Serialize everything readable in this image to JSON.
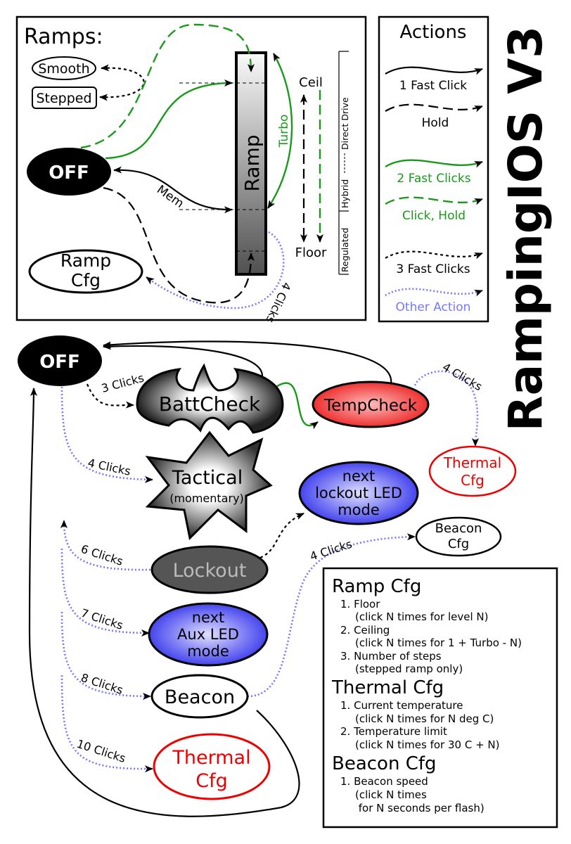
{
  "title": "RampingIOS V3",
  "ramps_panel": {
    "heading": "Ramps:",
    "smooth": "Smooth",
    "stepped": "Stepped",
    "off": "OFF",
    "ramp": "Ramp",
    "ramp_cfg": [
      "Ramp",
      "Cfg"
    ],
    "mem": "Mem",
    "turbo": "Turbo",
    "ceil": "Ceil",
    "floor": "Floor",
    "four_clicks": "4 Clicks",
    "scale": {
      "regulated": "Regulated",
      "hybrid": "Hybrid",
      "direct_drive": "Direct Drive"
    }
  },
  "actions_legend": {
    "heading": "Actions",
    "items": [
      {
        "label": "1 Fast Click",
        "color": "#000000",
        "style": "solid"
      },
      {
        "label": "Hold",
        "color": "#000000",
        "style": "dashed"
      },
      {
        "label": "2 Fast Clicks",
        "color": "#1a9a1a",
        "style": "solid"
      },
      {
        "label": "Click, Hold",
        "color": "#1a9a1a",
        "style": "dashed"
      },
      {
        "label": "3 Fast Clicks",
        "color": "#000000",
        "style": "dotted"
      },
      {
        "label": "Other Action",
        "color": "#7777ff",
        "style": "dotted"
      }
    ]
  },
  "states": {
    "off": "OFF",
    "battcheck": "BattCheck",
    "tempcheck": "TempCheck",
    "thermal_cfg_top": [
      "Thermal",
      "Cfg"
    ],
    "tactical": [
      "Tactical",
      "(momentary)"
    ],
    "lockout_led": [
      "next",
      "lockout LED",
      "mode"
    ],
    "beacon_cfg": [
      "Beacon",
      "Cfg"
    ],
    "lockout": "Lockout",
    "aux_led": [
      "next",
      "Aux LED",
      "mode"
    ],
    "beacon": "Beacon",
    "thermal_cfg": [
      "Thermal",
      "Cfg"
    ]
  },
  "transitions": {
    "off_battcheck": "3 Clicks",
    "tempcheck_thermal": "4 Clicks",
    "off_tactical": "4 Clicks",
    "off_lockout": "6 Clicks",
    "off_aux": "7 Clicks",
    "off_beacon": "8 Clicks",
    "off_thermal": "10 Clicks",
    "beacon_cfg": "4 Clicks"
  },
  "config_help": {
    "ramp_cfg": {
      "heading": "Ramp Cfg",
      "lines": [
        "1. Floor",
        "(click N times for level N)",
        "2. Ceiling",
        "(click N times for 1 + Turbo - N)",
        "3. Number of steps",
        "(stepped ramp only)"
      ]
    },
    "thermal_cfg": {
      "heading": "Thermal Cfg",
      "lines": [
        "1. Current temperature",
        "(click N times for N deg C)",
        "2. Temperature limit",
        "(click N times for 30 C + N)"
      ]
    },
    "beacon_cfg": {
      "heading": "Beacon Cfg",
      "lines": [
        "1. Beacon speed",
        "(click N times",
        " for N seconds per flash)"
      ]
    }
  },
  "colors": {
    "green": "#1a9a1a",
    "blue": "#7777ff",
    "red": "#ee0000",
    "lockout": "#555555"
  }
}
